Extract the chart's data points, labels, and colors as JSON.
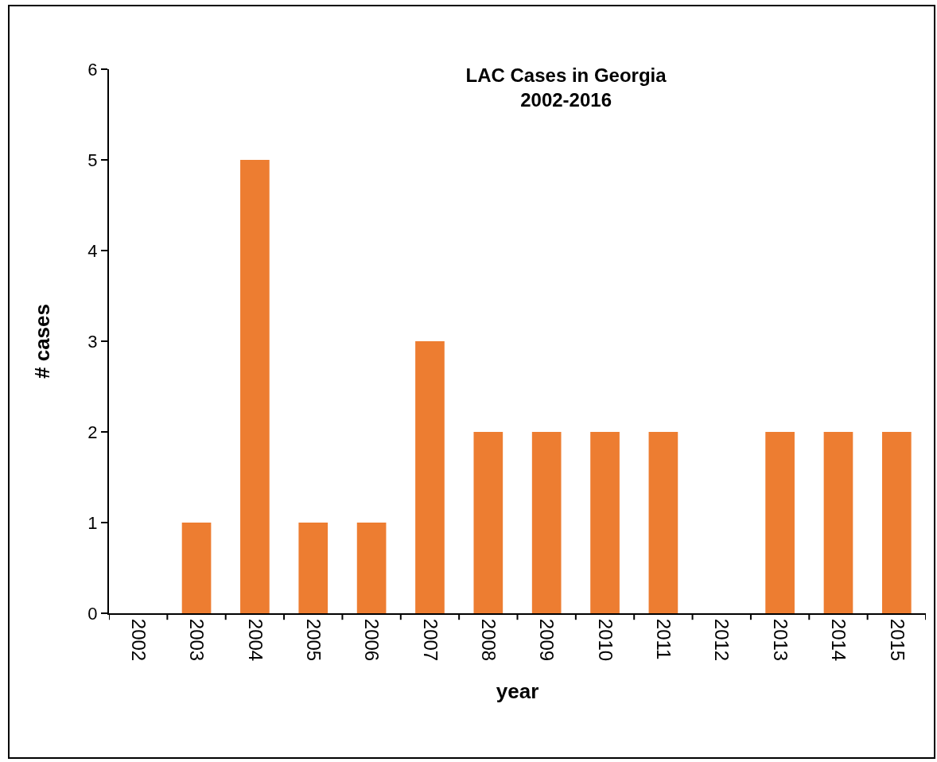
{
  "chart_data": {
    "type": "bar",
    "title": "LAC Cases in Georgia\n2002-2016",
    "xlabel": "year",
    "ylabel": "# cases",
    "categories": [
      "2002",
      "2003",
      "2004",
      "2005",
      "2006",
      "2007",
      "2008",
      "2009",
      "2010",
      "2011",
      "2012",
      "2013",
      "2014",
      "2015"
    ],
    "values": [
      0,
      1,
      5,
      1,
      1,
      3,
      2,
      2,
      2,
      2,
      0,
      2,
      2,
      2
    ],
    "color": "#ed7d31",
    "ylim": [
      0,
      6
    ],
    "yticks": [
      0,
      1,
      2,
      3,
      4,
      5,
      6
    ],
    "grid": false,
    "legend": false
  }
}
